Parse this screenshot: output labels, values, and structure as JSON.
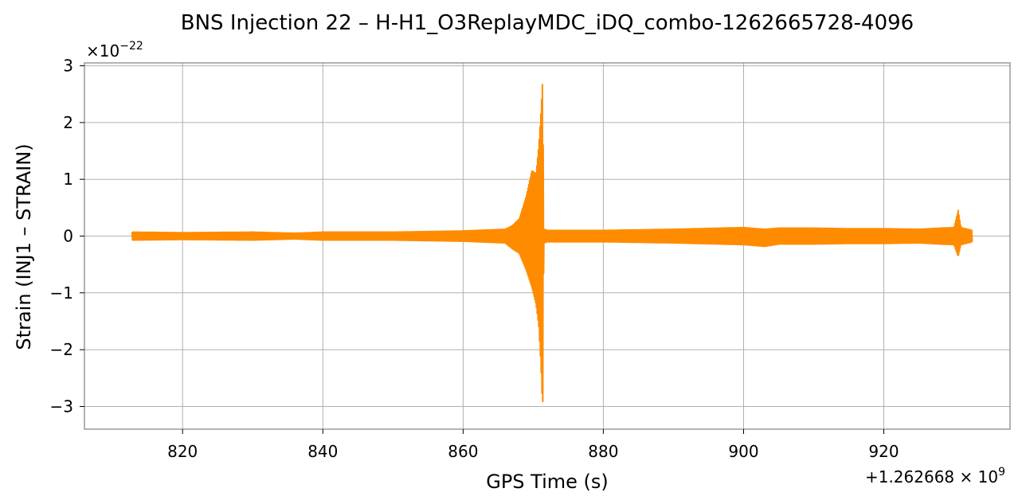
{
  "chart_data": {
    "type": "line",
    "title": "BNS Injection 22 – H-H1_O3ReplayMDC_iDQ_combo-1262665728-4096",
    "xlabel": "GPS Time (s)",
    "ylabel": "Strain (INJ1 – STRAIN)",
    "x_offset_label": {
      "base": "+1.262668 × 10",
      "exp": "9"
    },
    "y_scale_label": {
      "base": "×10",
      "exp": "−22"
    },
    "xlim": [
      806,
      938
    ],
    "ylim": [
      -3.4,
      3.05
    ],
    "x_ticks": [
      {
        "value": 820,
        "label": "820"
      },
      {
        "value": 840,
        "label": "840"
      },
      {
        "value": 860,
        "label": "860"
      },
      {
        "value": 880,
        "label": "880"
      },
      {
        "value": 900,
        "label": "900"
      },
      {
        "value": 920,
        "label": "920"
      }
    ],
    "y_ticks": [
      {
        "value": 3,
        "label": "3"
      },
      {
        "value": 2,
        "label": "2"
      },
      {
        "value": 1,
        "label": "1"
      },
      {
        "value": 0,
        "label": "0"
      },
      {
        "value": -1,
        "label": "−1"
      },
      {
        "value": -2,
        "label": "−2"
      },
      {
        "value": -3,
        "label": "−3"
      }
    ],
    "grid": true,
    "series": [
      {
        "color": "#ff8c00",
        "x_start": 812.8,
        "x_end": 932.6,
        "envelope": [
          [
            812.8,
            0.07,
            -0.07
          ],
          [
            820,
            0.06,
            -0.06
          ],
          [
            830,
            0.07,
            -0.07
          ],
          [
            836,
            0.05,
            -0.05
          ],
          [
            840,
            0.07,
            -0.07
          ],
          [
            850,
            0.07,
            -0.07
          ],
          [
            860,
            0.09,
            -0.09
          ],
          [
            864,
            0.11,
            -0.11
          ],
          [
            866,
            0.12,
            -0.12
          ],
          [
            867,
            0.18,
            -0.22
          ],
          [
            868,
            0.3,
            -0.3
          ],
          [
            869,
            0.7,
            -0.6
          ],
          [
            869.8,
            1.15,
            -0.9
          ],
          [
            870.4,
            1.1,
            -1.2
          ],
          [
            870.8,
            1.6,
            -1.6
          ],
          [
            871.1,
            2.2,
            -2.3
          ],
          [
            871.35,
            2.78,
            -3.1
          ],
          [
            871.5,
            0.12,
            -0.12
          ],
          [
            872,
            0.1,
            -0.1
          ],
          [
            880,
            0.1,
            -0.1
          ],
          [
            890,
            0.12,
            -0.12
          ],
          [
            900,
            0.15,
            -0.15
          ],
          [
            903,
            0.12,
            -0.18
          ],
          [
            905,
            0.14,
            -0.14
          ],
          [
            910,
            0.14,
            -0.14
          ],
          [
            915,
            0.13,
            -0.13
          ],
          [
            920,
            0.13,
            -0.13
          ],
          [
            925,
            0.12,
            -0.12
          ],
          [
            928,
            0.14,
            -0.14
          ],
          [
            930,
            0.15,
            -0.15
          ],
          [
            930.6,
            0.45,
            -0.36
          ],
          [
            931,
            0.15,
            -0.15
          ],
          [
            932.6,
            0.1,
            -0.1
          ]
        ]
      }
    ]
  }
}
